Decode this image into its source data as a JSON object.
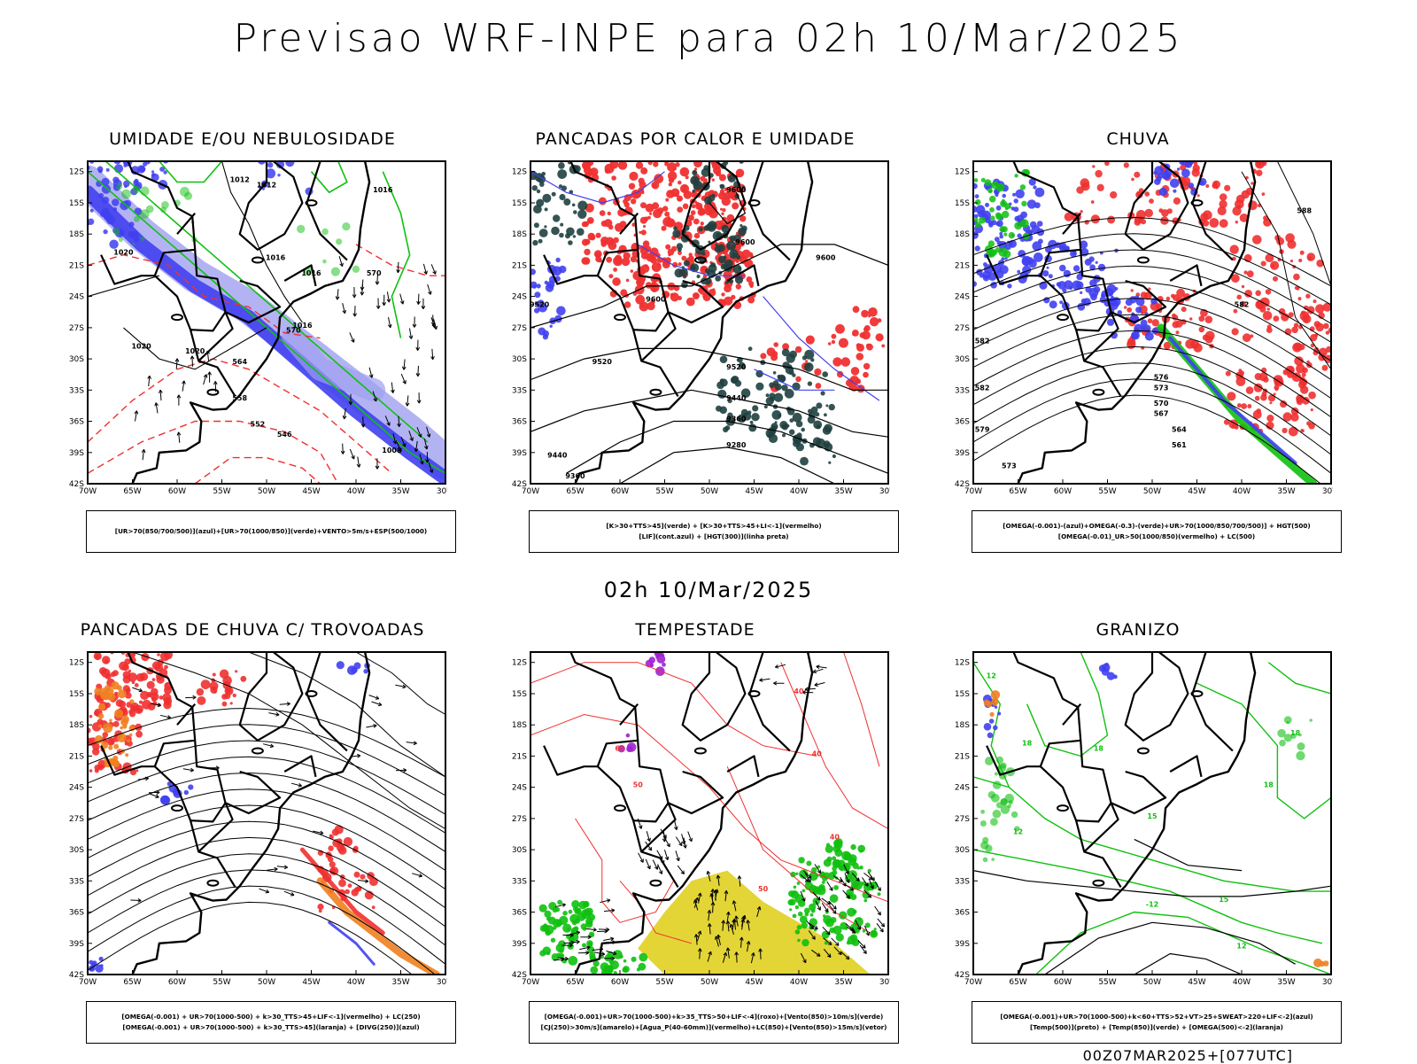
{
  "header": {
    "title": "Previsao WRF-INPE  para 02h 10/Mar/2025"
  },
  "mid_title": "02h 10/Mar/2025",
  "footer": "00Z07MAR2025+[077UTC]",
  "axes": {
    "lat_labels": [
      "12S",
      "15S",
      "18S",
      "21S",
      "24S",
      "27S",
      "30S",
      "33S",
      "36S",
      "39S",
      "42S"
    ],
    "lon_labels": [
      "70W",
      "65W",
      "60W",
      "55W",
      "50W",
      "45W",
      "40W",
      "35W",
      "30W"
    ]
  },
  "colors": {
    "blue": "#4040f0",
    "light_blue": "#a0a0f0",
    "green": "#10c010",
    "red": "#f03030",
    "dark_teal": "#204040",
    "orange": "#f08020",
    "yellow": "#e0d020",
    "purple": "#a020d0"
  },
  "panels": [
    {
      "title": "UMIDADE E/OU NEBULOSIDADE",
      "legend": [
        "[UR>70(850/700/500)](azul)+[UR>70(1000/850)](verde)+VENTO>5m/s+ESP(500/1000)"
      ],
      "contour_labels": [
        "1012",
        "1012",
        "1016",
        "1016",
        "1016",
        "1020",
        "1020",
        "1020",
        "1016",
        "570",
        "570",
        "564",
        "558",
        "552",
        "546",
        "1008"
      ]
    },
    {
      "title": "PANCADAS POR CALOR E UMIDADE",
      "legend": [
        "[K>30+TTS>45](verde) + [K>30+TTS>45+LI<-1](vermelho)",
        "[LIF](cont.azul) + [HGT(300)](linha preta)"
      ],
      "contour_labels": [
        "9600",
        "9600",
        "9600",
        "9600",
        "9520",
        "9520",
        "9520",
        "9440",
        "9360",
        "9280",
        "9440",
        "9360"
      ]
    },
    {
      "title": "CHUVA",
      "legend": [
        "[OMEGA(-0.001)-(azul)+OMEGA(-0.3)-(verde)+UR>70(1000/850/700/500)] + HGT(500)",
        "[OMEGA(-0.01)_UR>50(1000/850)(vermelho) + LC(500)"
      ],
      "contour_labels": [
        "588",
        "582",
        "582",
        "582",
        "579",
        "576",
        "573",
        "570",
        "567",
        "564",
        "561",
        "573"
      ]
    },
    {
      "title": "PANCADAS DE CHUVA C/ TROVOADAS",
      "legend": [
        "[OMEGA(-0.001) + UR>70(1000-500) + k>30_TTS>45+LIF<-1](vermelho) + LC(250)",
        "[OMEGA(-0.001) + UR>70(1000-500) + k>30_TTS>45](laranja) + [DIVG(250)](azul)"
      ],
      "contour_labels": []
    },
    {
      "title": "TEMPESTADE",
      "legend": [
        "[OMEGA(-0.001)+UR>70(1000-500)+k>35_TTS>50+LIF<-4](roxo)+[Vento(850)>10m/s](verde)",
        "[CJ(250)>30m/s](amarelo)+[Agua_P(40-60mm)](vermelho)+LC(850)+[Vento(850)>15m/s](vetor)"
      ],
      "contour_labels": [
        "60",
        "50",
        "40",
        "40",
        "50",
        "40"
      ]
    },
    {
      "title": "GRANIZO",
      "legend": [
        "[OMEGA(-0.001)+UR>70(1000-500)+k<60+TTS>52+VT>25+SWEAT>220+LIF<-2](azul)",
        "[Temp(500)](preto) + [Temp(850)](verde) + [OMEGA(500)<-2](laranja)"
      ],
      "contour_labels": [
        "12",
        "18",
        "18",
        "15",
        "18",
        "18",
        "12",
        "-12",
        "15",
        "12"
      ]
    }
  ]
}
